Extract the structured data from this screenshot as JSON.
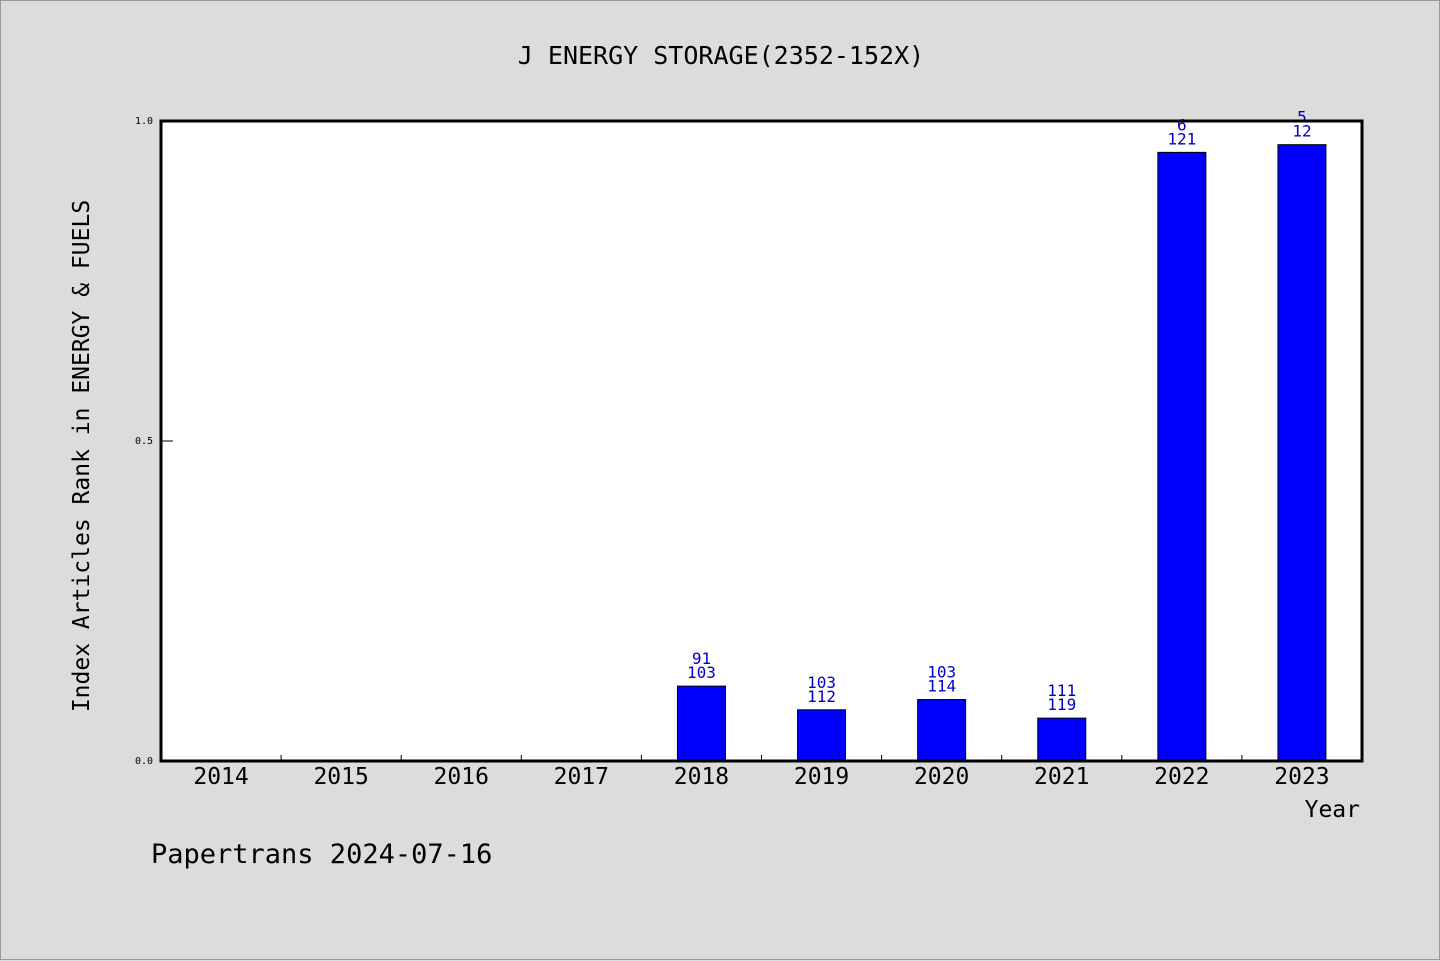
{
  "chart_data": {
    "type": "bar",
    "title": "J ENERGY STORAGE(2352-152X)",
    "xlabel": "Year",
    "ylabel": "Index Articles Rank in ENERGY & FUELS",
    "categories": [
      "2014",
      "2015",
      "2016",
      "2017",
      "2018",
      "2019",
      "2020",
      "2021",
      "2022",
      "2023"
    ],
    "values": [
      0,
      0,
      0,
      0,
      0.117,
      0.08,
      0.096,
      0.067,
      0.951,
      0.963
    ],
    "bar_labels": [
      [
        "",
        ""
      ],
      [
        "",
        ""
      ],
      [
        "",
        ""
      ],
      [
        "",
        ""
      ],
      [
        "91",
        "103"
      ],
      [
        "103",
        "112"
      ],
      [
        "103",
        "114"
      ],
      [
        "111",
        "119"
      ],
      [
        "6",
        "121"
      ],
      [
        "5",
        "12"
      ]
    ],
    "y_ticks": [
      "0.0",
      "0.5",
      "1.0"
    ],
    "y_tick_values": [
      0,
      0.5,
      1.0
    ],
    "ylim": [
      0,
      1.0
    ],
    "grid": false,
    "bar_color": "#0000ff",
    "label_color": "#0000cc"
  },
  "footer": "Papertrans 2024-07-16"
}
